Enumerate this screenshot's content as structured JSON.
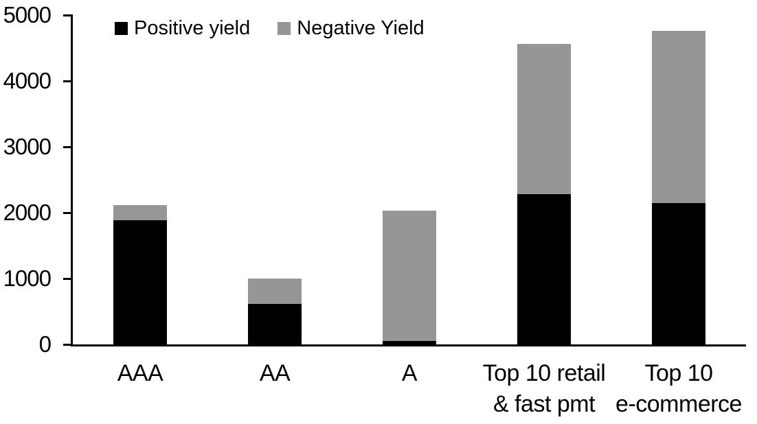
{
  "chart_data": {
    "type": "bar",
    "stacked": true,
    "title": "",
    "xlabel": "",
    "ylabel": "",
    "categories": [
      "AAA",
      "AA",
      "A",
      "Top 10 retail & fast pmt",
      "Top 10 e-commerce"
    ],
    "category_label_lines": [
      [
        "AAA"
      ],
      [
        "AA"
      ],
      [
        "A"
      ],
      [
        "Top 10 retail",
        "& fast pmt"
      ],
      [
        "Top 10",
        "e-commerce"
      ]
    ],
    "series": [
      {
        "name": "Positive yield",
        "color": "#000000",
        "values": [
          1890,
          620,
          50,
          2280,
          2150
        ]
      },
      {
        "name": "Negative Yield",
        "color": "#969696",
        "values": [
          225,
          380,
          1985,
          2280,
          2610
        ]
      }
    ],
    "totals": [
      2115,
      1000,
      2035,
      4560,
      4760
    ],
    "ylim": [
      0,
      5000
    ],
    "yticks": [
      0,
      1000,
      2000,
      3000,
      4000,
      5000
    ],
    "grid": false,
    "legend_position": "top-center",
    "background_color": "#ffffff",
    "axis_color": "#000000"
  }
}
